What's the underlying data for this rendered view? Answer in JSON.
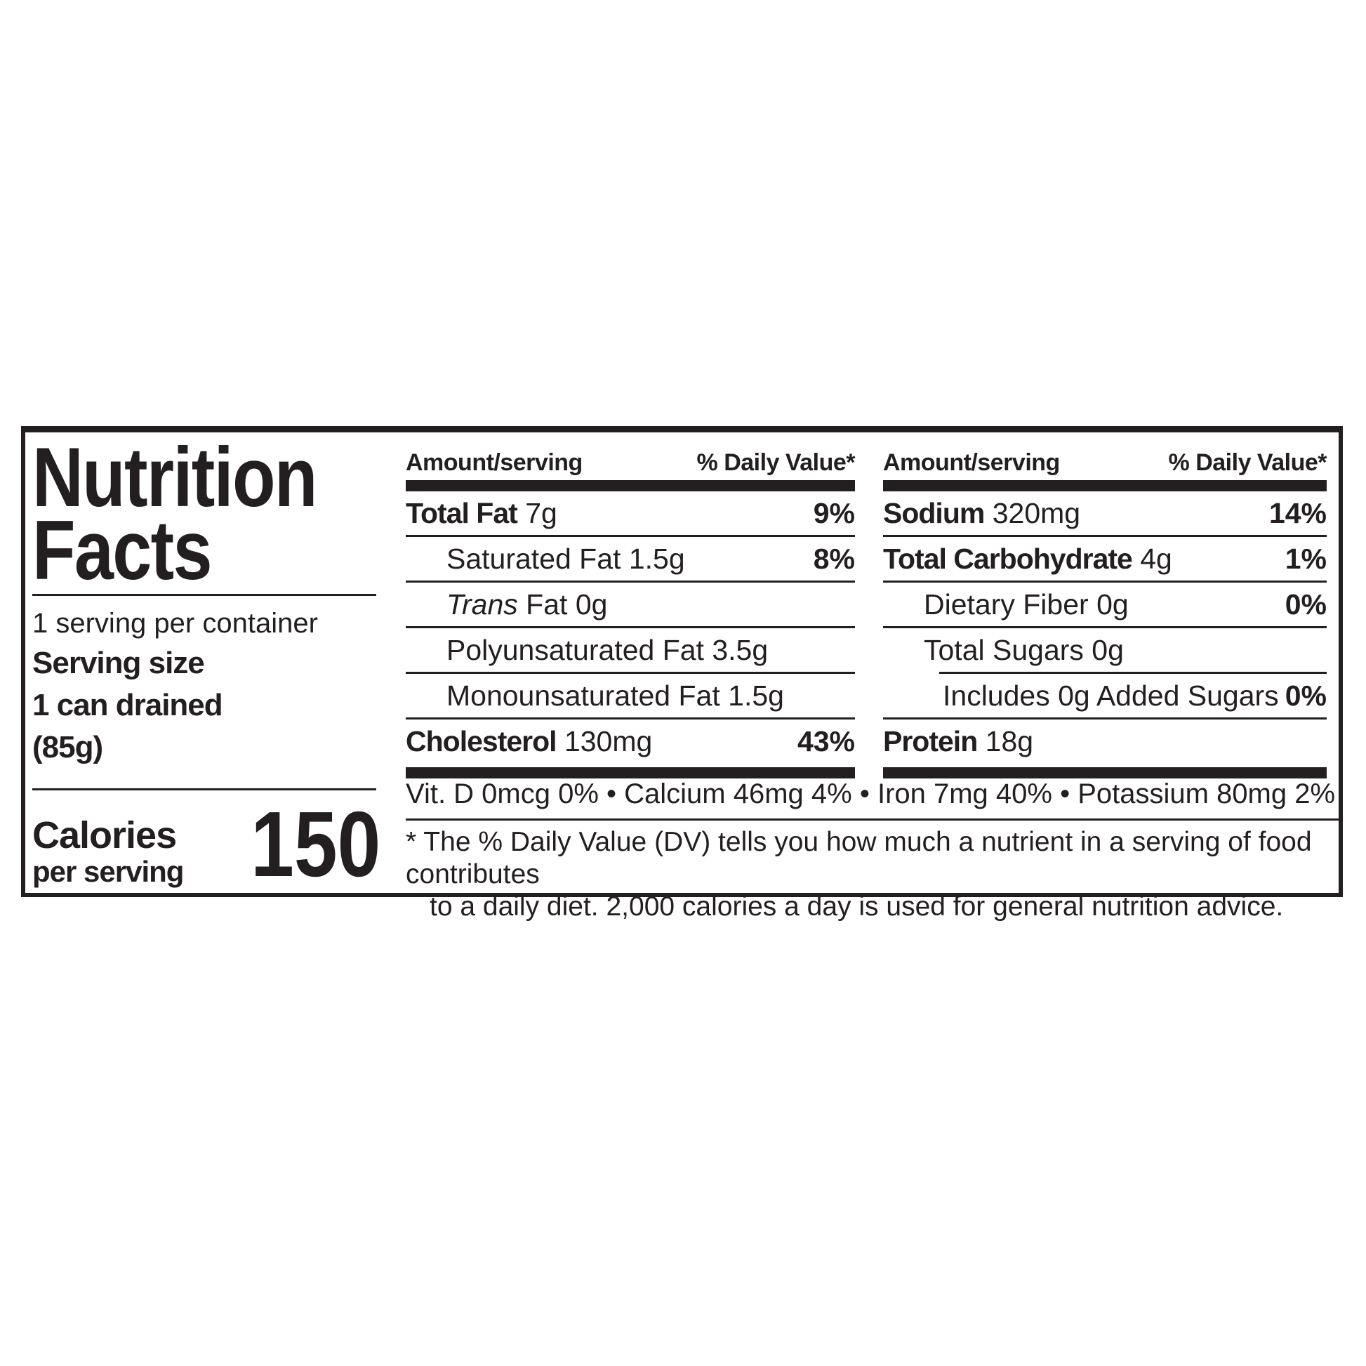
{
  "label": {
    "title_line1": "Nutrition",
    "title_line2": "Facts",
    "servings_per_container": "1 serving per container",
    "serving_size_label": "Serving size",
    "serving_size_value": "1 can drained",
    "serving_size_weight": "(85g)",
    "calories_label": "Calories",
    "calories_sublabel": "per serving",
    "calories_value": "150",
    "columns": [
      {
        "header_amount": "Amount/serving",
        "header_dv": "% Daily Value*",
        "rows": [
          {
            "name": "Total Fat",
            "bold": true,
            "amount": "7g",
            "dv": "9%",
            "indent": 0
          },
          {
            "name": "Saturated Fat",
            "bold": false,
            "amount": "1.5g",
            "dv": "8%",
            "indent": 1
          },
          {
            "name_italic": "Trans",
            "name": "Fat",
            "bold": false,
            "amount": "0g",
            "dv": "",
            "indent": 1
          },
          {
            "name": "Polyunsaturated Fat",
            "bold": false,
            "amount": "3.5g",
            "dv": "",
            "indent": 1
          },
          {
            "name": "Monounsaturated Fat",
            "bold": false,
            "amount": "1.5g",
            "dv": "",
            "indent": 1
          },
          {
            "name": "Cholesterol",
            "bold": true,
            "amount": "130mg",
            "dv": "43%",
            "indent": 0
          }
        ]
      },
      {
        "header_amount": "Amount/serving",
        "header_dv": "% Daily Value*",
        "rows": [
          {
            "name": "Sodium",
            "bold": true,
            "amount": "320mg",
            "dv": "14%",
            "indent": 0
          },
          {
            "name": "Total Carbohydrate",
            "bold": true,
            "amount": "4g",
            "dv": "1%",
            "indent": 0
          },
          {
            "name": "Dietary Fiber",
            "bold": false,
            "amount": "0g",
            "dv": "0%",
            "indent": 1
          },
          {
            "name": "Total Sugars",
            "bold": false,
            "amount": "0g",
            "dv": "",
            "indent": 1
          },
          {
            "name": "Includes 0g Added Sugars",
            "bold": false,
            "amount": "",
            "dv": "0%",
            "indent": 2,
            "rule_inset": true
          },
          {
            "name": "Protein",
            "bold": true,
            "amount": "18g",
            "dv": "",
            "indent": 0
          }
        ]
      }
    ],
    "micronutrients": {
      "separator": " • ",
      "items": [
        "Vit. D 0mcg 0%",
        "Calcium 46mg 4%",
        "Iron 7mg 40%",
        "Potassium 80mg 2%"
      ]
    },
    "footnote_line1": "* The % Daily Value (DV) tells you how much a nutrient in a serving of food contributes",
    "footnote_line2": "to a daily diet. 2,000 calories a day is used for general nutrition advice."
  }
}
